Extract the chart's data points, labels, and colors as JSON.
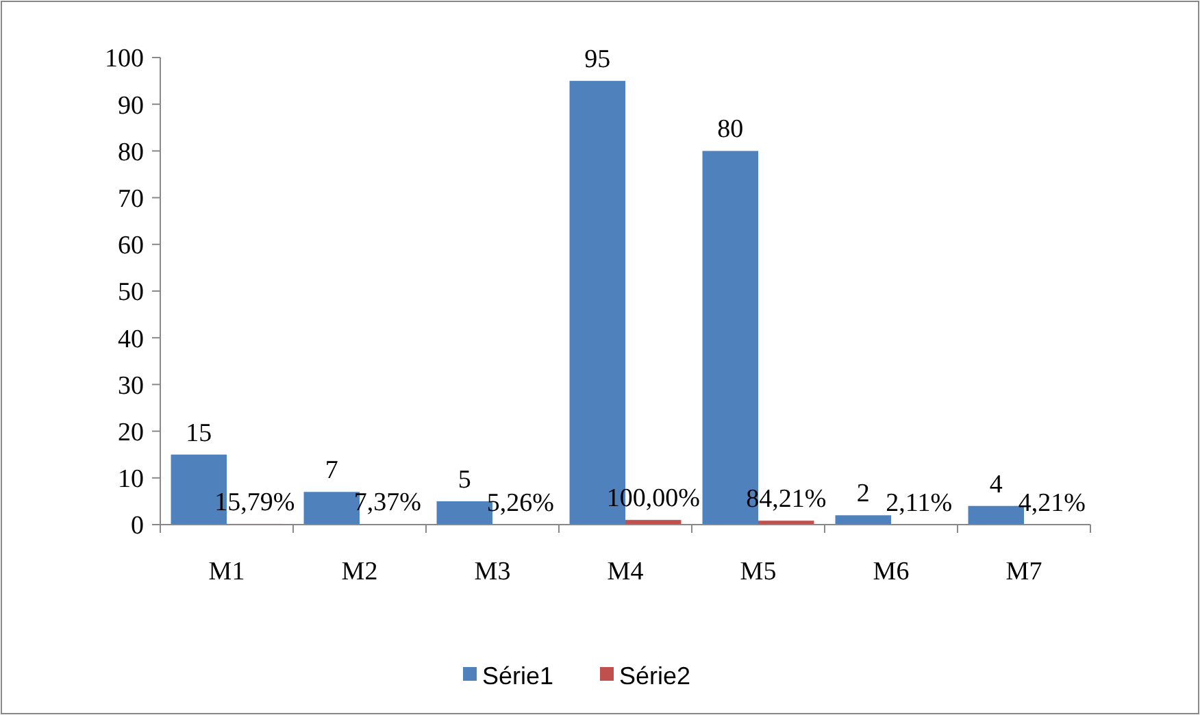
{
  "chart_data": {
    "type": "bar",
    "categories": [
      "M1",
      "M2",
      "M3",
      "M4",
      "M5",
      "M6",
      "M7"
    ],
    "series": [
      {
        "name": "Série1",
        "color": "#4f81bd",
        "values": [
          15,
          7,
          5,
          95,
          80,
          2,
          4
        ],
        "value_labels": [
          "15",
          "7",
          "5",
          "95",
          "80",
          "2",
          "4"
        ]
      },
      {
        "name": "Série2",
        "color": "#c0504d",
        "values": [
          0.1579,
          0.0737,
          0.0526,
          1.0,
          0.8421,
          0.0211,
          0.0421
        ],
        "value_labels": [
          "15,79%",
          "7,37%",
          "5,26%",
          "100,00%",
          "84,21%",
          "2,11%",
          "4,21%"
        ]
      }
    ],
    "ylim": [
      0,
      100
    ],
    "yticks": [
      0,
      10,
      20,
      30,
      40,
      50,
      60,
      70,
      80,
      90,
      100
    ],
    "grid": false,
    "legend": "bottom"
  }
}
